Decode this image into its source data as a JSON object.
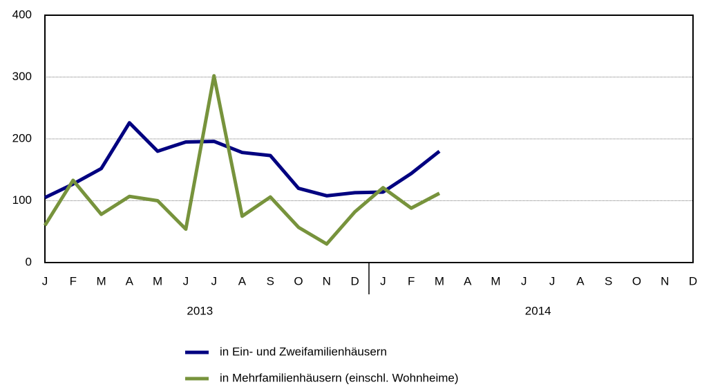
{
  "chart_data": {
    "type": "line",
    "categories": [
      "J",
      "F",
      "M",
      "A",
      "M",
      "J",
      "J",
      "A",
      "S",
      "O",
      "N",
      "D",
      "J",
      "F",
      "M",
      "A",
      "M",
      "J",
      "J",
      "A",
      "S",
      "O",
      "N",
      "D"
    ],
    "years": [
      "2013",
      "2014"
    ],
    "series": [
      {
        "name": "in Ein- und Zweifamilienhäusern",
        "color": "#000080",
        "values": [
          105,
          127,
          152,
          226,
          180,
          195,
          196,
          178,
          173,
          120,
          108,
          113,
          114,
          144,
          180,
          null,
          null,
          null,
          null,
          null,
          null,
          null,
          null,
          null
        ]
      },
      {
        "name": "in Mehrfamilienhäusern (einschl. Wohnheime)",
        "color": "#77933c",
        "values": [
          60,
          133,
          78,
          107,
          100,
          54,
          302,
          75,
          106,
          57,
          30,
          82,
          121,
          88,
          112,
          null,
          null,
          null,
          null,
          null,
          null,
          null,
          null,
          null
        ]
      }
    ],
    "ylim": [
      0,
      400
    ],
    "yticks": [
      0,
      100,
      200,
      300,
      400
    ],
    "grid": true
  }
}
